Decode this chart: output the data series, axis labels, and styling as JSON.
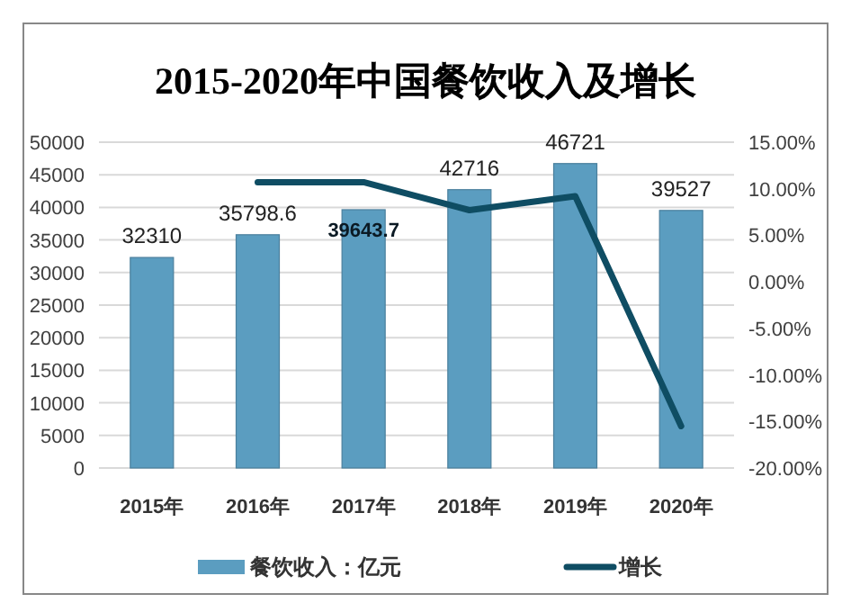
{
  "chart_data": {
    "type": "bar",
    "title": "2015-2020年中国餐饮收入及增长",
    "categories": [
      "2015年",
      "2016年",
      "2017年",
      "2018年",
      "2019年",
      "2020年"
    ],
    "series": [
      {
        "name": "餐饮收入：亿元",
        "color": "#5b9dc0",
        "values": [
          32310,
          35798.6,
          39643.7,
          42716,
          46721,
          39527
        ],
        "value_labels": [
          "32310",
          "35798.6",
          "39643.7",
          "42716",
          "46721",
          "39527"
        ]
      },
      {
        "name": "增长",
        "type": "line",
        "axis": "y2",
        "color": "#0f4d63",
        "values": [
          null,
          10.7,
          10.7,
          7.7,
          9.2,
          -15.5
        ]
      }
    ],
    "ylim": [
      0,
      50000
    ],
    "yticks": [
      0,
      5000,
      10000,
      15000,
      20000,
      25000,
      30000,
      35000,
      40000,
      45000,
      50000
    ],
    "y2lim": [
      -20,
      15
    ],
    "y2ticks": [
      {
        "value": -20,
        "label": "-20.00%"
      },
      {
        "value": -15,
        "label": "-15.00%"
      },
      {
        "value": -10,
        "label": "-10.00%"
      },
      {
        "value": -5,
        "label": "-5.00%"
      },
      {
        "value": 0,
        "label": "0.00%"
      },
      {
        "value": 5,
        "label": "5.00%"
      },
      {
        "value": 10,
        "label": "10.00%"
      },
      {
        "value": 15,
        "label": "15.00%"
      }
    ],
    "grid": "y",
    "legend": "bottom",
    "marker": "none",
    "line_style": "solid"
  }
}
